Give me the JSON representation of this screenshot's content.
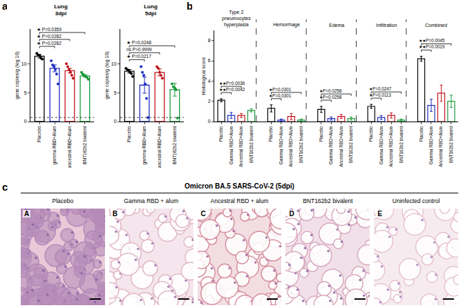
{
  "panel_labels": [
    "a",
    "b",
    "c"
  ],
  "chart_data": [
    {
      "type": "bar",
      "title": "Lung",
      "subtitle": "3dpi",
      "y_label": "gene copies/g (log 10)",
      "categories": [
        "Placebo",
        "gamma RBD+Alum",
        "ancestral RBD+Alum",
        "BNT162b2 bivalent"
      ],
      "values": [
        11.3,
        9.2,
        8.8,
        7.9
      ],
      "errors": [
        0.3,
        0.6,
        0.4,
        0.2
      ],
      "points": [
        [
          11.8,
          11.5,
          11.4,
          11.0,
          10.8
        ],
        [
          10.5,
          9.8,
          9.5,
          9.0,
          8.2,
          6.5
        ],
        [
          10.0,
          9.5,
          9.0,
          8.5,
          8.0,
          7.5
        ],
        [
          8.5,
          8.2,
          8.0,
          7.8,
          7.6,
          7.3
        ]
      ],
      "colors": [
        "#000000",
        "#1f2fbf",
        "#c0141c",
        "#1a9a3a"
      ],
      "ylim": [
        0,
        16
      ],
      "yticks": [
        0,
        5,
        10
      ],
      "limit_of_detection": 0.7,
      "grid": false,
      "comparisons": [
        {
          "from": 0,
          "to": 1,
          "label": "★ P=0.0282"
        },
        {
          "from": 0,
          "to": 2,
          "label": "★ P=0.0282"
        },
        {
          "from": 0,
          "to": 3,
          "label": "★ P=0.0359"
        }
      ]
    },
    {
      "type": "bar",
      "title": "Lung",
      "subtitle": "5dpi",
      "y_label": "gene copies/g (log 10)",
      "categories": [
        "Placebo",
        "gamma RBD+Alum",
        "ancestral RBD+Alum",
        "BNT162b2 bivalent"
      ],
      "values": [
        8.7,
        6.3,
        8.5,
        5.5
      ],
      "errors": [
        0.3,
        1.4,
        0.6,
        1.1
      ],
      "points": [
        [
          9.2,
          9.0,
          8.8,
          8.5,
          8.3,
          7.8
        ],
        [
          9.5,
          8.5,
          8.0,
          6.5,
          4.0,
          0.7
        ],
        [
          9.5,
          9.2,
          8.5,
          8.0,
          7.5
        ],
        [
          6.5,
          6.0,
          5.8,
          5.5,
          0.6
        ]
      ],
      "colors": [
        "#000000",
        "#1f2fbf",
        "#c0141c",
        "#1a9a3a"
      ],
      "ylim": [
        0,
        16
      ],
      "yticks": [
        0,
        5,
        10
      ],
      "limit_of_detection": 0.7,
      "grid": false,
      "comparisons": [
        {
          "from": 0,
          "to": 1,
          "label": "★ P=0.0217"
        },
        {
          "from": 0,
          "to": 2,
          "label": "ns P>0.9999"
        },
        {
          "from": 0,
          "to": 3,
          "label": "★ P=0.0248"
        }
      ]
    },
    {
      "type": "grouped_bar",
      "y_label": "Histological score",
      "groups": [
        "Type 2 pneumocytes hyperplasia",
        "Hemorrhage",
        "Edema",
        "Infiltration",
        "Combined"
      ],
      "series": [
        {
          "name": "Placebo",
          "color": "#000000",
          "values": [
            2.1,
            1.3,
            1.2,
            1.5,
            6.2
          ],
          "errors": [
            0.15,
            0.35,
            0.3,
            0.2,
            0.25
          ]
        },
        {
          "name": "Gamma RBD+Alum",
          "color": "#1f2fbf",
          "values": [
            0.6,
            0.15,
            0.3,
            0.4,
            1.6
          ],
          "errors": [
            0.3,
            0.1,
            0.15,
            0.2,
            0.6
          ]
        },
        {
          "name": "Ancestral RBD+Alum",
          "color": "#c0141c",
          "values": [
            0.6,
            0.5,
            0.5,
            0.6,
            2.8
          ],
          "errors": [
            0.2,
            0.3,
            0.2,
            0.25,
            0.8
          ]
        },
        {
          "name": "BNT162b2 bivalent",
          "color": "#1a9a3a",
          "values": [
            1.1,
            0.15,
            0.3,
            0.15,
            2.0
          ],
          "errors": [
            0.15,
            0.1,
            0.15,
            0.1,
            0.6
          ]
        }
      ],
      "ylim": [
        0,
        9
      ],
      "yticks": [
        0,
        2,
        4,
        6,
        8
      ],
      "grid": false,
      "comparisons": [
        {
          "group": 0,
          "from": 0,
          "to": 1,
          "label": "★★P=0.0042"
        },
        {
          "group": 0,
          "from": 0,
          "to": 2,
          "label": "★★P=0.0036"
        },
        {
          "group": 1,
          "from": 0,
          "to": 1,
          "label": "★P=0.0301"
        },
        {
          "group": 1,
          "from": 0,
          "to": 3,
          "label": "★P=0.0301"
        },
        {
          "group": 2,
          "from": 0,
          "to": 1,
          "label": "★P=0.0258"
        },
        {
          "group": 2,
          "from": 0,
          "to": 3,
          "label": "★P=0.0258"
        },
        {
          "group": 3,
          "from": 0,
          "to": 1,
          "label": "★P=0.0113"
        },
        {
          "group": 3,
          "from": 0,
          "to": 3,
          "label": "★P=0.0247"
        },
        {
          "group": 4,
          "from": 0,
          "to": 1,
          "label": "★★P=0.0019"
        },
        {
          "group": 4,
          "from": 0,
          "to": 3,
          "label": "★★P=0.0045"
        }
      ]
    }
  ],
  "image_panel": {
    "title": "Omicron BA.5 SARS-CoV-2 (5dpi)",
    "images": [
      {
        "letter": "A",
        "label": "Placebo"
      },
      {
        "letter": "B",
        "label": "Gamma RBD + alum"
      },
      {
        "letter": "C",
        "label": "Ancestral  RBD + alum"
      },
      {
        "letter": "D",
        "label": "BNT162b2 bivalent"
      },
      {
        "letter": "E",
        "label": "Uninfected control"
      }
    ]
  }
}
